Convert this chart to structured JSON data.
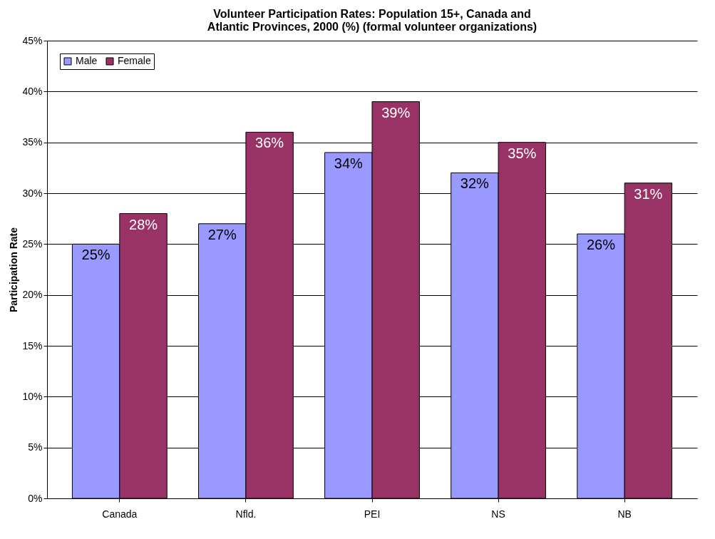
{
  "chart_data": {
    "type": "bar",
    "title": "Volunteer Participation Rates: Population 15+, Canada and Atlantic Provinces, 2000 (%) (formal volunteer organizations)",
    "ylabel": "Participation Rate",
    "categories": [
      "Canada",
      "Nfld.",
      "PEI",
      "NS",
      "NB"
    ],
    "series": [
      {
        "name": "Male",
        "color": "#9999ff",
        "values": [
          25,
          27,
          34,
          32,
          26
        ],
        "value_labels": [
          "25%",
          "27%",
          "34%",
          "32%",
          "26%"
        ]
      },
      {
        "name": "Female",
        "color": "#993366",
        "values": [
          28,
          36,
          39,
          35,
          31
        ],
        "value_labels": [
          "28%",
          "36%",
          "39%",
          "35%",
          "31%"
        ]
      }
    ],
    "ylim": [
      0,
      45
    ],
    "yticks": [
      {
        "value": 0,
        "label": "0%"
      },
      {
        "value": 5,
        "label": "5%"
      },
      {
        "value": 10,
        "label": "10%"
      },
      {
        "value": 15,
        "label": "15%"
      },
      {
        "value": 20,
        "label": "20%"
      },
      {
        "value": 25,
        "label": "25%"
      },
      {
        "value": 30,
        "label": "30%"
      },
      {
        "value": 35,
        "label": "35%"
      },
      {
        "value": 40,
        "label": "40%"
      },
      {
        "value": 45,
        "label": "45%"
      }
    ],
    "grid": "y",
    "legend": "top left"
  }
}
